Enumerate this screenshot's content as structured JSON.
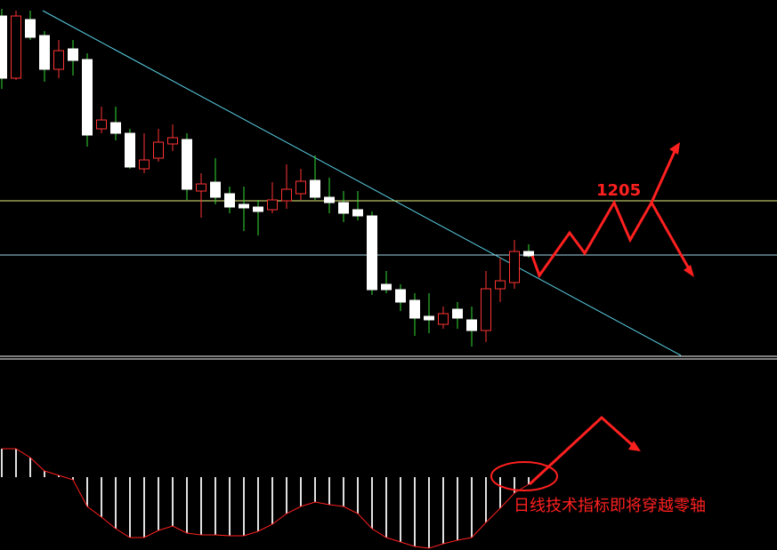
{
  "chart_data": [
    {
      "type": "candlestick",
      "open": [
        1413,
        1343,
        1409,
        1391,
        1353,
        1376,
        1364,
        1286,
        1293,
        1281,
        1241,
        1253,
        1269,
        1274,
        1216,
        1226,
        1213,
        1201,
        1198,
        1195,
        1205,
        1213,
        1228,
        1209,
        1203,
        1195,
        1188,
        1111,
        1105,
        1093,
        1075,
        1066,
        1083,
        1071,
        1059,
        1106,
        1113,
        1148
      ],
      "high": [
        1421,
        1419,
        1419,
        1396,
        1386,
        1386,
        1371,
        1311,
        1311,
        1286,
        1281,
        1286,
        1291,
        1281,
        1236,
        1253,
        1221,
        1221,
        1206,
        1226,
        1246,
        1241,
        1256,
        1231,
        1216,
        1216,
        1193,
        1126,
        1111,
        1101,
        1101,
        1086,
        1091,
        1086,
        1126,
        1141,
        1161,
        1156
      ],
      "low": [
        1331,
        1341,
        1386,
        1339,
        1343,
        1346,
        1266,
        1281,
        1273,
        1241,
        1236,
        1249,
        1261,
        1206,
        1186,
        1201,
        1191,
        1171,
        1166,
        1191,
        1196,
        1206,
        1206,
        1191,
        1181,
        1183,
        1099,
        1101,
        1081,
        1053,
        1056,
        1061,
        1061,
        1041,
        1046,
        1091,
        1106,
        1141
      ],
      "close": [
        1343,
        1413,
        1389,
        1353,
        1374,
        1363,
        1279,
        1296,
        1281,
        1243,
        1251,
        1271,
        1276,
        1218,
        1224,
        1209,
        1198,
        1197,
        1193,
        1206,
        1218,
        1227,
        1209,
        1203,
        1191,
        1188,
        1105,
        1105,
        1091,
        1073,
        1071,
        1078,
        1073,
        1059,
        1106,
        1115,
        1148,
        1143
      ],
      "ylim": [
        1031,
        1431
      ],
      "up_color": "#ff3333",
      "down_color": "#ffffff",
      "down_wick_color": "#33dd33",
      "hlines": [
        1205,
        1144
      ],
      "hline_colors": [
        "#e6f07a",
        "#9fd3e6"
      ]
    },
    {
      "type": "bar",
      "values": [
        32,
        32,
        22,
        7,
        2,
        -3,
        -33,
        -45,
        -58,
        -68,
        -68,
        -60,
        -55,
        -63,
        -65,
        -65,
        -66,
        -66,
        -61,
        -53,
        -41,
        -33,
        -28,
        -31,
        -33,
        -41,
        -58,
        -68,
        -73,
        -78,
        -80,
        -75,
        -71,
        -68,
        -51,
        -35,
        -18,
        -8
      ],
      "ylim": [
        -82,
        132
      ],
      "color": "#e0e0e0",
      "line_color": "#ff2020",
      "annotation": "日线技术指标即将穿越零轴"
    }
  ]
}
